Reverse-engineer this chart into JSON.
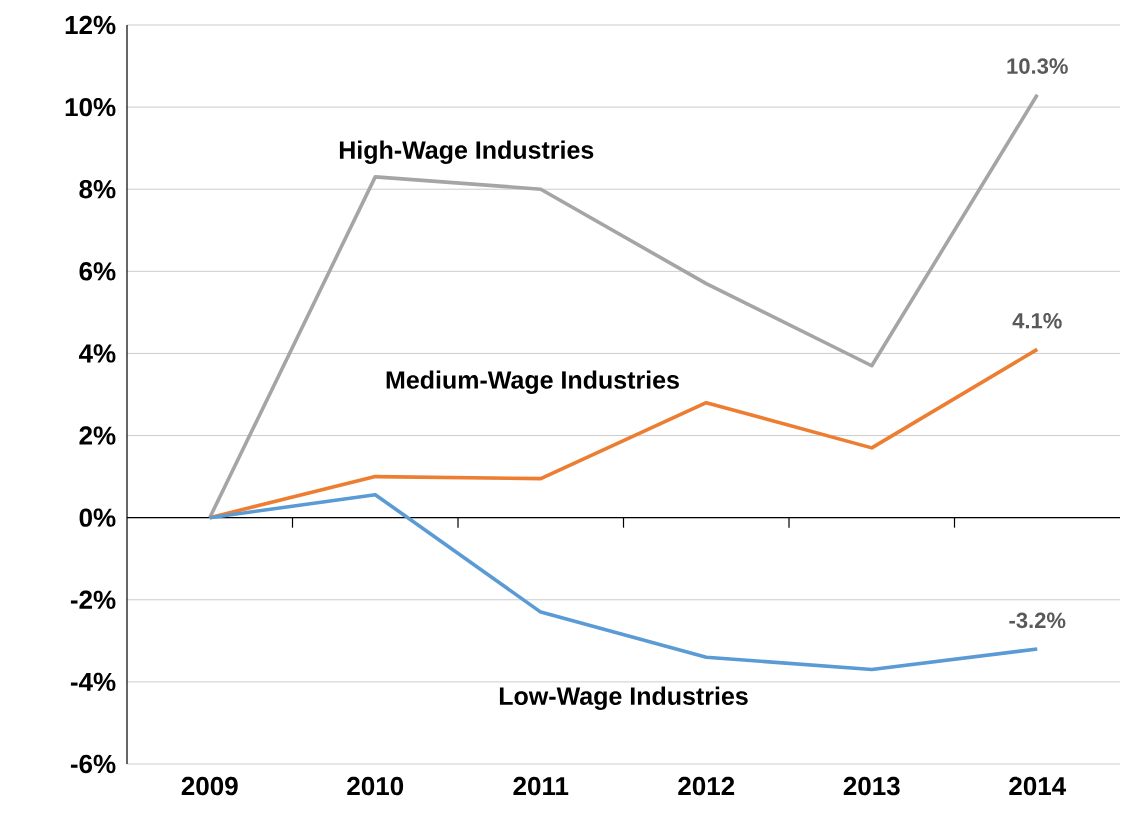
{
  "chart_data": {
    "type": "line",
    "categories": [
      "2009",
      "2010",
      "2011",
      "2012",
      "2013",
      "2014"
    ],
    "series": [
      {
        "name": "High-Wage Industries",
        "color": "#a5a5a5",
        "values": [
          0,
          8.3,
          8.0,
          5.7,
          3.7,
          10.3
        ],
        "value_labels": [
          null,
          null,
          null,
          null,
          null,
          "10.3%"
        ]
      },
      {
        "name": "Medium-Wage Industries",
        "color": "#ed7d31",
        "values": [
          0,
          1.0,
          0.95,
          2.8,
          1.7,
          4.1
        ],
        "value_labels": [
          null,
          null,
          null,
          null,
          null,
          "4.1%"
        ]
      },
      {
        "name": "Low-Wage Industries",
        "color": "#5b9bd5",
        "values": [
          0,
          0.56,
          -2.3,
          -3.4,
          -3.7,
          -3.2
        ],
        "value_labels": [
          null,
          null,
          null,
          null,
          null,
          "-3.2%"
        ]
      }
    ],
    "ylim": [
      -6,
      12
    ],
    "yticks": [
      {
        "value": -6,
        "label": "-6%"
      },
      {
        "value": -4,
        "label": "-4%"
      },
      {
        "value": -2,
        "label": "-2%"
      },
      {
        "value": 0,
        "label": "0%"
      },
      {
        "value": 2,
        "label": "2%"
      },
      {
        "value": 4,
        "label": "4%"
      },
      {
        "value": 6,
        "label": "6%"
      },
      {
        "value": 8,
        "label": "8%"
      },
      {
        "value": 10,
        "label": "10%"
      },
      {
        "value": 12,
        "label": "12%"
      }
    ],
    "grid": "y",
    "marker": "none",
    "line_style": "solid"
  }
}
